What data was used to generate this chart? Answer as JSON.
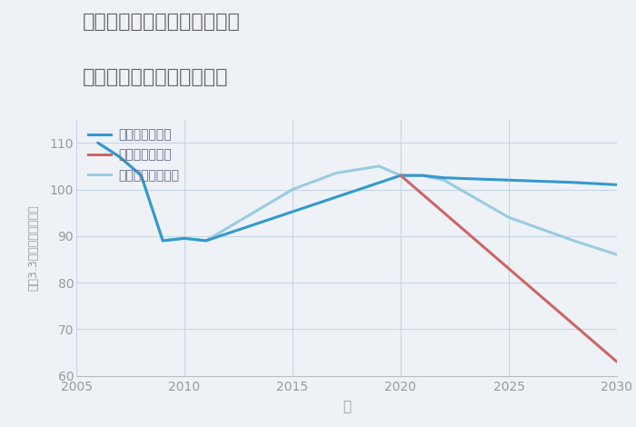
{
  "title_line1": "奈良県吉野郡下市町阿知賀の",
  "title_line2": "中古マンションの価格推移",
  "xlabel": "年",
  "ylabel_parts": [
    "平（3.3㎡）単価（万円）"
  ],
  "background_color": "#eef2f7",
  "plot_background": "#eef2f7",
  "good_scenario": {
    "label": "グッドシナリオ",
    "color": "#3399cc",
    "linewidth": 2.2,
    "x": [
      2006,
      2007,
      2008,
      2009,
      2010,
      2011,
      2020,
      2021,
      2022,
      2025,
      2028,
      2030
    ],
    "y": [
      110,
      107,
      103,
      89,
      89.5,
      89,
      103,
      103,
      102.5,
      102,
      101.5,
      101
    ]
  },
  "bad_scenario": {
    "label": "バッドシナリオ",
    "color": "#cc6666",
    "linewidth": 2.2,
    "x": [
      2020,
      2030
    ],
    "y": [
      103,
      63
    ]
  },
  "normal_scenario": {
    "label": "ノーマルシナリオ",
    "color": "#99cce0",
    "linewidth": 2.2,
    "x": [
      2006,
      2007,
      2008,
      2009,
      2010,
      2011,
      2015,
      2017,
      2019,
      2020,
      2021,
      2022,
      2025,
      2028,
      2030
    ],
    "y": [
      110,
      107,
      103,
      89,
      89.5,
      89,
      100,
      103.5,
      105,
      103,
      103,
      102,
      94,
      89,
      86
    ]
  },
  "xlim": [
    2005,
    2030
  ],
  "ylim": [
    60,
    115
  ],
  "xticks": [
    2005,
    2010,
    2015,
    2020,
    2025,
    2030
  ],
  "yticks": [
    60,
    70,
    80,
    90,
    100,
    110
  ],
  "grid_color": "#c5d5e5",
  "title_color": "#666666",
  "tick_color": "#999999",
  "label_color": "#999999",
  "legend_text_color": "#666688"
}
